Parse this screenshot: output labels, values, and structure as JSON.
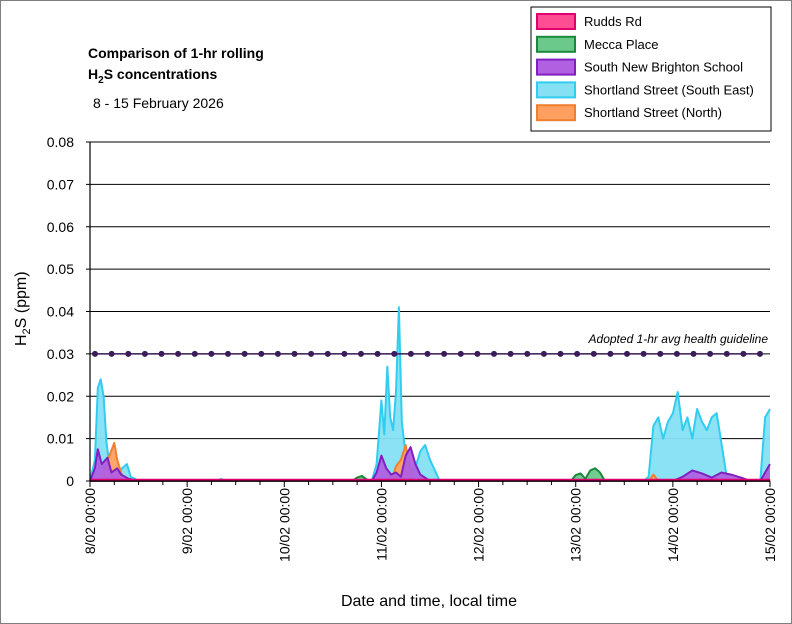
{
  "chart_data": {
    "type": "area",
    "title_line1": "Comparison of 1-hr rolling",
    "title_line2_main": "H",
    "title_line2_sub": "2",
    "title_line2_rest": "S concentrations",
    "subtitle": "8 - 15 February 2026",
    "ylabel_main": "H",
    "ylabel_sub": "2",
    "ylabel_rest": "S (ppm)",
    "xlabel": "Date and time, local time",
    "ylim": [
      0,
      0.08
    ],
    "yticks": [
      "0",
      "0.01",
      "0.02",
      "0.03",
      "0.04",
      "0.05",
      "0.06",
      "0.07",
      "0.08"
    ],
    "xlim": [
      0,
      7
    ],
    "xticks": [
      "8/02 00:00",
      "9/02 00:00",
      "10/02 00:00",
      "11/02 00:00",
      "12/02 00:00",
      "13/02 00:00",
      "14/02 00:00",
      "15/02 00:00"
    ],
    "grid": true,
    "legend_position": "top-right",
    "guideline": {
      "value": 0.03,
      "label": "Adopted 1-hr avg health guideline",
      "color": "#3b1c5a"
    },
    "series": [
      {
        "name": "Rudds Rd",
        "fill": "#ff4d94",
        "stroke": "#e0006e",
        "points": [
          [
            0,
            0.0002
          ],
          [
            7,
            0.0002
          ]
        ]
      },
      {
        "name": "Mecca Place",
        "fill": "#6cc98c",
        "stroke": "#1a8a3a",
        "points": [
          [
            0,
            0
          ],
          [
            2.7,
            0
          ],
          [
            2.75,
            0.0008
          ],
          [
            2.8,
            0.0012
          ],
          [
            2.85,
            0.0003
          ],
          [
            2.9,
            0
          ],
          [
            4.95,
            0
          ],
          [
            5.0,
            0.0014
          ],
          [
            5.05,
            0.0018
          ],
          [
            5.1,
            0.0005
          ],
          [
            5.15,
            0.0025
          ],
          [
            5.2,
            0.003
          ],
          [
            5.25,
            0.002
          ],
          [
            5.3,
            0
          ],
          [
            7,
            0
          ]
        ]
      },
      {
        "name": "South New Brighton School",
        "fill": "#b060e0",
        "stroke": "#8020c0",
        "points": [
          [
            0,
            0
          ],
          [
            0.05,
            0.003
          ],
          [
            0.08,
            0.0075
          ],
          [
            0.12,
            0.004
          ],
          [
            0.18,
            0.0055
          ],
          [
            0.22,
            0.002
          ],
          [
            0.28,
            0.003
          ],
          [
            0.32,
            0.0015
          ],
          [
            0.4,
            0.0005
          ],
          [
            0.5,
            0
          ],
          [
            2.9,
            0
          ],
          [
            2.95,
            0.002
          ],
          [
            3.0,
            0.006
          ],
          [
            3.05,
            0.003
          ],
          [
            3.1,
            0.0015
          ],
          [
            3.15,
            0.002
          ],
          [
            3.2,
            0.001
          ],
          [
            3.25,
            0.006
          ],
          [
            3.3,
            0.008
          ],
          [
            3.35,
            0.004
          ],
          [
            3.4,
            0.0015
          ],
          [
            3.5,
            0
          ],
          [
            6.0,
            0
          ],
          [
            6.1,
            0.001
          ],
          [
            6.2,
            0.0025
          ],
          [
            6.3,
            0.0018
          ],
          [
            6.4,
            0.0008
          ],
          [
            6.5,
            0.002
          ],
          [
            6.6,
            0.0015
          ],
          [
            6.7,
            0.0008
          ],
          [
            6.8,
            0
          ],
          [
            6.9,
            0
          ],
          [
            6.95,
            0.002
          ],
          [
            7.0,
            0.004
          ]
        ]
      },
      {
        "name": "Shortland Street (South East)",
        "fill": "#86e0f4",
        "stroke": "#30cdf0",
        "points": [
          [
            0,
            0
          ],
          [
            0.05,
            0.005
          ],
          [
            0.08,
            0.022
          ],
          [
            0.11,
            0.024
          ],
          [
            0.14,
            0.02
          ],
          [
            0.17,
            0.009
          ],
          [
            0.2,
            0.004
          ],
          [
            0.24,
            0.002
          ],
          [
            0.28,
            0.0015
          ],
          [
            0.33,
            0.003
          ],
          [
            0.38,
            0.004
          ],
          [
            0.42,
            0.001
          ],
          [
            0.5,
            0
          ],
          [
            1.3,
            0
          ],
          [
            1.35,
            0.0005
          ],
          [
            1.4,
            0
          ],
          [
            2.9,
            0
          ],
          [
            2.95,
            0.004
          ],
          [
            3.0,
            0.019
          ],
          [
            3.03,
            0.011
          ],
          [
            3.06,
            0.027
          ],
          [
            3.09,
            0.015
          ],
          [
            3.12,
            0.012
          ],
          [
            3.15,
            0.021
          ],
          [
            3.18,
            0.041
          ],
          [
            3.21,
            0.014
          ],
          [
            3.24,
            0.008
          ],
          [
            3.28,
            0.005
          ],
          [
            3.32,
            0.002
          ],
          [
            3.36,
            0.004
          ],
          [
            3.4,
            0.007
          ],
          [
            3.45,
            0.0085
          ],
          [
            3.5,
            0.005
          ],
          [
            3.55,
            0.0025
          ],
          [
            3.6,
            0
          ],
          [
            5.7,
            0
          ],
          [
            5.75,
            0.001
          ],
          [
            5.8,
            0.013
          ],
          [
            5.85,
            0.015
          ],
          [
            5.9,
            0.01
          ],
          [
            5.95,
            0.014
          ],
          [
            6.0,
            0.016
          ],
          [
            6.05,
            0.021
          ],
          [
            6.1,
            0.012
          ],
          [
            6.15,
            0.015
          ],
          [
            6.2,
            0.01
          ],
          [
            6.25,
            0.017
          ],
          [
            6.3,
            0.014
          ],
          [
            6.35,
            0.012
          ],
          [
            6.4,
            0.015
          ],
          [
            6.45,
            0.016
          ],
          [
            6.5,
            0.009
          ],
          [
            6.55,
            0.0015
          ],
          [
            6.6,
            0
          ],
          [
            6.9,
            0
          ],
          [
            6.95,
            0.015
          ],
          [
            7.0,
            0.017
          ]
        ]
      },
      {
        "name": "Shortland Street (North)",
        "fill": "#ffa060",
        "stroke": "#f08030",
        "points": [
          [
            0,
            0
          ],
          [
            0.1,
            0
          ],
          [
            0.15,
            0.003
          ],
          [
            0.2,
            0.006
          ],
          [
            0.25,
            0.009
          ],
          [
            0.28,
            0.005
          ],
          [
            0.32,
            0.002
          ],
          [
            0.35,
            0
          ],
          [
            3.1,
            0
          ],
          [
            3.15,
            0.0035
          ],
          [
            3.2,
            0.005
          ],
          [
            3.25,
            0.0085
          ],
          [
            3.3,
            0.002
          ],
          [
            3.35,
            0
          ],
          [
            5.75,
            0
          ],
          [
            5.8,
            0.0015
          ],
          [
            5.85,
            0
          ],
          [
            6.9,
            0
          ],
          [
            6.95,
            0.0018
          ],
          [
            7.0,
            0
          ]
        ]
      }
    ]
  }
}
